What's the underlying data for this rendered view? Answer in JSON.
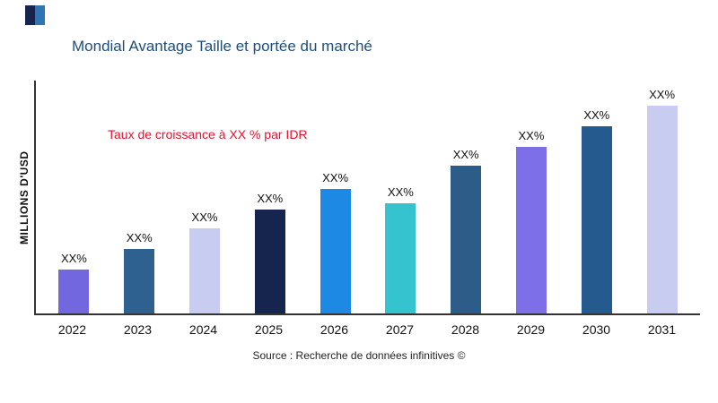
{
  "header": {
    "title": "Mondial Avantage Taille et portée du marché"
  },
  "logo": {
    "colors": [
      "#16254e",
      "#2e75b6"
    ]
  },
  "chart_data": {
    "type": "bar",
    "title": "Mondial Avantage Taille et portée du marché",
    "xlabel": "",
    "ylabel": "MILLIONS D'USD",
    "categories": [
      "2022",
      "2023",
      "2024",
      "2025",
      "2026",
      "2027",
      "2028",
      "2029",
      "2030",
      "2031"
    ],
    "values": [
      21,
      31,
      41,
      50,
      60,
      53,
      71,
      80,
      90,
      100
    ],
    "value_note": "relative estimates; axis has no numeric ticks",
    "bar_labels": [
      "XX%",
      "XX%",
      "XX%",
      "XX%",
      "XX%",
      "XX%",
      "XX%",
      "XX%",
      "XX%",
      "XX%"
    ],
    "bar_colors": [
      "#7367e0",
      "#2e6090",
      "#c7ccf0",
      "#16254e",
      "#1e88e5",
      "#35c4cf",
      "#2c5c87",
      "#7c6fe8",
      "#245a8d",
      "#c7ccf0"
    ],
    "annotation": "Taux de croissance à XX % par IDR",
    "annotation_color": "#e8112d",
    "source": "Source : Recherche de données infinitives ©",
    "ylim": [
      0,
      110
    ],
    "grid": false,
    "legend": false
  }
}
